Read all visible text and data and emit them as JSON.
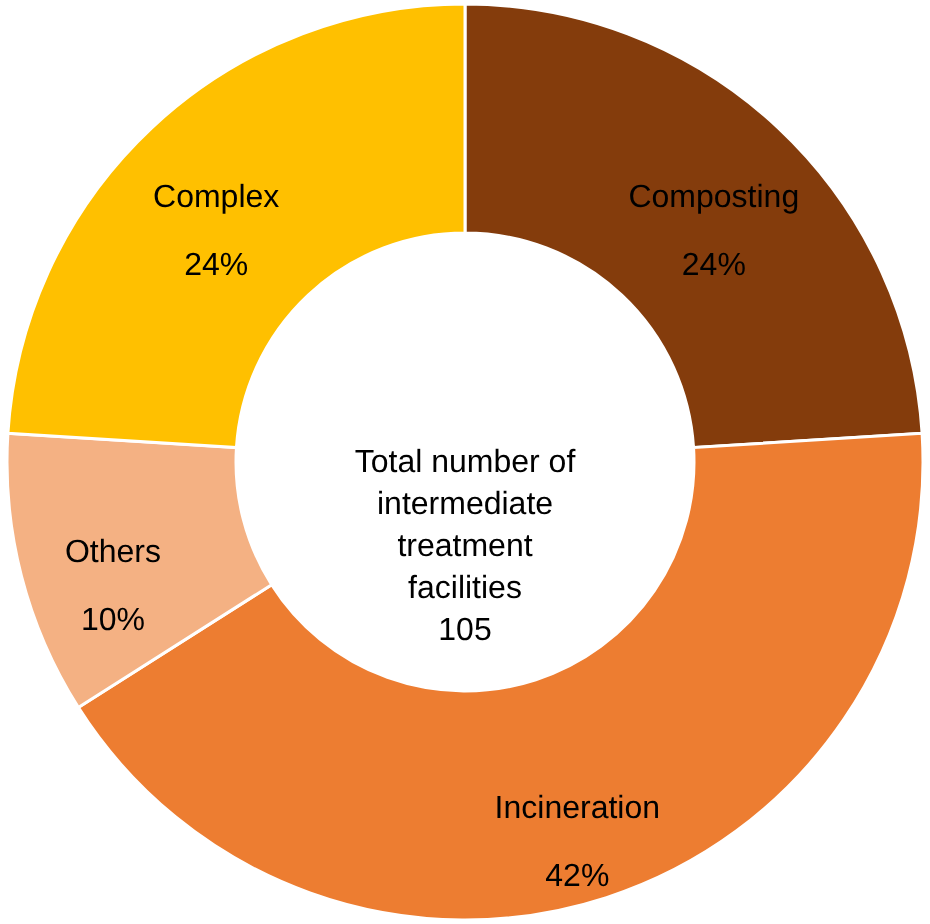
{
  "chart_data": {
    "type": "donut",
    "categories": [
      "Composting",
      "Incineration",
      "Others",
      "Complex"
    ],
    "values": [
      24,
      42,
      10,
      24
    ],
    "value_labels": [
      "24%",
      "42%",
      "10%",
      "24%"
    ],
    "colors": [
      "#843c0c",
      "#ed7d31",
      "#f4b183",
      "#ffc000"
    ],
    "annotations": [
      "Total number of\nintermediate\ntreatment\nfacilities\n105"
    ]
  }
}
